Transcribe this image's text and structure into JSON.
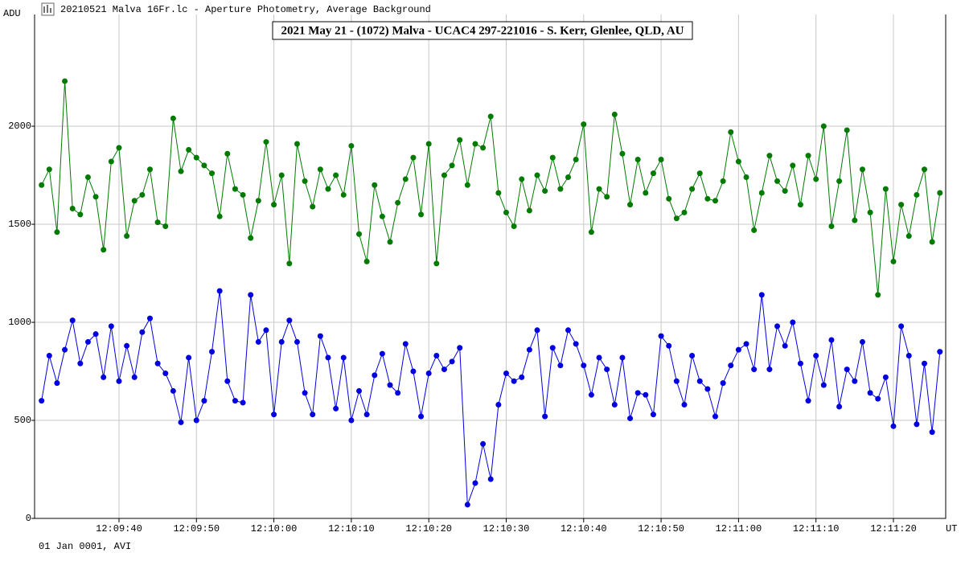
{
  "window_title": "20210521 Malva 16Fr.lc - Aperture Photometry, Average Background",
  "footer": "01 Jan 0001, AVI",
  "chart_data": {
    "type": "line",
    "title": "2021 May 21 - (1072) Malva - UCAC4 297-221016 - S. Kerr, Glenlee, QLD, AU",
    "y_label": "ADU",
    "x_label": "UT",
    "grid": true,
    "xlim": [
      43769.1,
      43886.75
    ],
    "ylim": [
      0,
      2570
    ],
    "yticks": [
      0,
      500,
      1000,
      1500,
      2000
    ],
    "xticks": [
      {
        "value": 43780,
        "label": "12:09:40"
      },
      {
        "value": 43790,
        "label": "12:09:50"
      },
      {
        "value": 43800,
        "label": "12:10:00"
      },
      {
        "value": 43810,
        "label": "12:10:10"
      },
      {
        "value": 43820,
        "label": "12:10:20"
      },
      {
        "value": 43830,
        "label": "12:10:30"
      },
      {
        "value": 43840,
        "label": "12:10:40"
      },
      {
        "value": 43850,
        "label": "12:10:50"
      },
      {
        "value": 43860,
        "label": "12:11:00"
      },
      {
        "value": 43870,
        "label": "12:11:10"
      },
      {
        "value": 43880,
        "label": "12:11:20"
      }
    ],
    "x": [
      43770,
      43771,
      43772,
      43773,
      43774,
      43775,
      43776,
      43777,
      43778,
      43779,
      43780,
      43781,
      43782,
      43783,
      43784,
      43785,
      43786,
      43787,
      43788,
      43789,
      43790,
      43791,
      43792,
      43793,
      43794,
      43795,
      43796,
      43797,
      43798,
      43799,
      43800,
      43801,
      43802,
      43803,
      43804,
      43805,
      43806,
      43807,
      43808,
      43809,
      43810,
      43811,
      43812,
      43813,
      43814,
      43815,
      43816,
      43817,
      43818,
      43819,
      43820,
      43821,
      43822,
      43823,
      43824,
      43825,
      43826,
      43827,
      43828,
      43829,
      43830,
      43831,
      43832,
      43833,
      43834,
      43835,
      43836,
      43837,
      43838,
      43839,
      43840,
      43841,
      43842,
      43843,
      43844,
      43845,
      43846,
      43847,
      43848,
      43849,
      43850,
      43851,
      43852,
      43853,
      43854,
      43855,
      43856,
      43857,
      43858,
      43859,
      43860,
      43861,
      43862,
      43863,
      43864,
      43865,
      43866,
      43867,
      43868,
      43869,
      43870,
      43871,
      43872,
      43873,
      43874,
      43875,
      43876,
      43877,
      43878,
      43879,
      43880,
      43881,
      43882,
      43883,
      43884,
      43885,
      43886
    ],
    "series": [
      {
        "color": "#007a00",
        "values": [
          1700,
          1780,
          1460,
          2230,
          1580,
          1550,
          1740,
          1640,
          1370,
          1820,
          1890,
          1440,
          1620,
          1650,
          1780,
          1510,
          1490,
          2040,
          1770,
          1880,
          1840,
          1800,
          1760,
          1540,
          1860,
          1680,
          1650,
          1430,
          1620,
          1920,
          1600,
          1750,
          1300,
          1910,
          1720,
          1590,
          1780,
          1680,
          1750,
          1650,
          1900,
          1450,
          1310,
          1700,
          1540,
          1410,
          1610,
          1730,
          1840,
          1550,
          1910,
          1300,
          1750,
          1800,
          1930,
          1700,
          1910,
          1890,
          2050,
          1660,
          1560,
          1490,
          1730,
          1570,
          1750,
          1670,
          1840,
          1680,
          1740,
          1830,
          2010,
          1460,
          1680,
          1640,
          2060,
          1860,
          1600,
          1830,
          1660,
          1760,
          1830,
          1630,
          1530,
          1560,
          1680,
          1760,
          1630,
          1620,
          1720,
          1970,
          1820,
          1740,
          1470,
          1660,
          1850,
          1720,
          1670,
          1800,
          1600,
          1850,
          1730,
          2000,
          1490,
          1720,
          1980,
          1520,
          1780,
          1560,
          1140,
          1680,
          1310,
          1600,
          1440,
          1650,
          1780,
          1410,
          1660
        ]
      },
      {
        "color": "#0000e0",
        "values": [
          600,
          830,
          690,
          860,
          1010,
          790,
          900,
          940,
          720,
          980,
          700,
          880,
          720,
          950,
          1020,
          790,
          740,
          650,
          490,
          820,
          500,
          600,
          850,
          1160,
          700,
          600,
          590,
          1140,
          900,
          960,
          530,
          900,
          1010,
          900,
          640,
          530,
          930,
          820,
          560,
          820,
          500,
          650,
          530,
          730,
          840,
          680,
          640,
          890,
          750,
          520,
          740,
          830,
          760,
          800,
          870,
          70,
          180,
          380,
          200,
          580,
          740,
          700,
          720,
          860,
          960,
          520,
          870,
          780,
          960,
          890,
          780,
          630,
          820,
          760,
          580,
          820,
          510,
          640,
          630,
          530,
          930,
          880,
          700,
          580,
          830,
          700,
          660,
          520,
          690,
          780,
          860,
          890,
          760,
          1140,
          760,
          980,
          880,
          1000,
          790,
          600,
          830,
          680,
          910,
          570,
          760,
          700,
          900,
          640,
          610,
          720,
          470,
          980,
          830,
          480,
          790,
          440,
          850
        ]
      }
    ]
  }
}
